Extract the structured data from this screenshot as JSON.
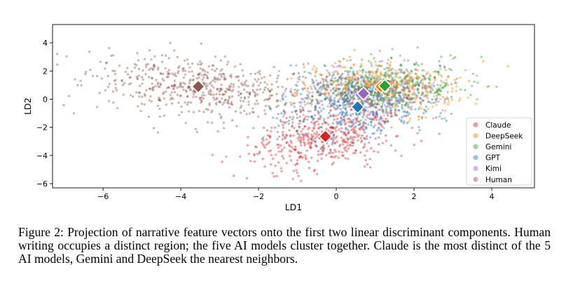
{
  "chart_data": {
    "type": "scatter",
    "title": "",
    "xlabel": "LD1",
    "ylabel": "LD2",
    "xlim": [
      -7.3,
      5.1
    ],
    "ylim": [
      -6.3,
      5.3
    ],
    "xticks": [
      -6,
      -4,
      -2,
      0,
      2,
      4
    ],
    "yticks": [
      -6,
      -4,
      -2,
      0,
      2,
      4
    ],
    "grid": false,
    "legend_position": "lower-right",
    "series": [
      {
        "name": "Claude",
        "color": "#d62728",
        "centroid": [
          -0.28,
          -2.65
        ],
        "count": 480,
        "spread": [
          0.95,
          1.15
        ],
        "tilt": 0.2
      },
      {
        "name": "DeepSeek",
        "color": "#ff7f0e",
        "centroid": [
          1.15,
          0.9
        ],
        "count": 420,
        "spread": [
          1.05,
          0.9
        ],
        "tilt": 0.0
      },
      {
        "name": "Gemini",
        "color": "#2ca02c",
        "centroid": [
          1.25,
          0.95
        ],
        "count": 420,
        "spread": [
          1.0,
          0.85
        ],
        "tilt": 0.0
      },
      {
        "name": "GPT",
        "color": "#1f77b4",
        "centroid": [
          0.55,
          -0.55
        ],
        "count": 420,
        "spread": [
          1.0,
          1.1
        ],
        "tilt": 0.1
      },
      {
        "name": "Kimi",
        "color": "#9467bd",
        "centroid": [
          0.7,
          0.4
        ],
        "count": 400,
        "spread": [
          1.0,
          1.0
        ],
        "tilt": 0.0
      },
      {
        "name": "Human",
        "color": "#8c564b",
        "centroid": [
          -3.55,
          0.9
        ],
        "count": 560,
        "spread": [
          1.45,
          1.05
        ],
        "tilt": -0.15
      }
    ]
  },
  "caption": {
    "text": "Figure 2: Projection of narrative feature vectors onto the first two linear discriminant components. Human writing occupies a distinct region; the five AI models cluster together. Claude is the most distinct of the 5 AI models, Gemini and DeepSeek the nearest neighbors."
  }
}
